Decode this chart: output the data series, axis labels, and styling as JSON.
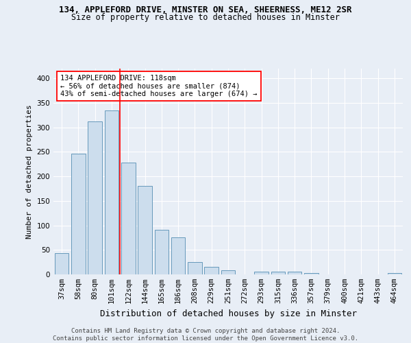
{
  "title1": "134, APPLEFORD DRIVE, MINSTER ON SEA, SHEERNESS, ME12 2SR",
  "title2": "Size of property relative to detached houses in Minster",
  "xlabel": "Distribution of detached houses by size in Minster",
  "ylabel": "Number of detached properties",
  "categories": [
    "37sqm",
    "58sqm",
    "80sqm",
    "101sqm",
    "122sqm",
    "144sqm",
    "165sqm",
    "186sqm",
    "208sqm",
    "229sqm",
    "251sqm",
    "272sqm",
    "293sqm",
    "315sqm",
    "336sqm",
    "357sqm",
    "379sqm",
    "400sqm",
    "421sqm",
    "443sqm",
    "464sqm"
  ],
  "values": [
    44,
    246,
    312,
    335,
    228,
    180,
    91,
    75,
    25,
    15,
    9,
    0,
    5,
    5,
    5,
    3,
    0,
    0,
    0,
    0,
    3
  ],
  "bar_color": "#ccdded",
  "bar_edge_color": "#6699bb",
  "vline_color": "red",
  "vline_pos": 3.5,
  "annotation_lines": [
    "134 APPLEFORD DRIVE: 118sqm",
    "← 56% of detached houses are smaller (874)",
    "43% of semi-detached houses are larger (674) →"
  ],
  "ylim": [
    0,
    420
  ],
  "yticks": [
    0,
    50,
    100,
    150,
    200,
    250,
    300,
    350,
    400
  ],
  "footer": "Contains HM Land Registry data © Crown copyright and database right 2024.\nContains public sector information licensed under the Open Government Licence v3.0.",
  "background_color": "#e8eef6",
  "grid_color": "#ffffff",
  "title1_fontsize": 9,
  "title2_fontsize": 8.5,
  "ylabel_fontsize": 8,
  "xlabel_fontsize": 9,
  "tick_fontsize": 7.5,
  "annot_fontsize": 7.5,
  "footer_fontsize": 6.5
}
